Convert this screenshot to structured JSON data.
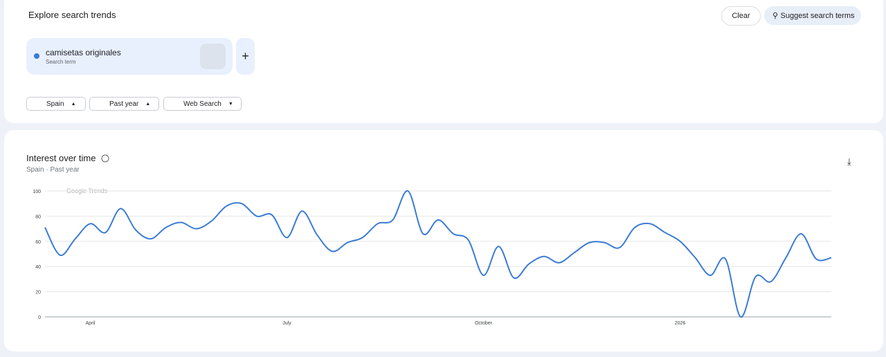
{
  "header": {
    "title": "Explore search trends",
    "clear": "Clear",
    "suggest": "Suggest search terms"
  },
  "term": {
    "name": "camisetas originales",
    "kind": "Search term"
  },
  "filters": [
    "Spain",
    "Past year",
    "Web Search"
  ],
  "chart_data": {
    "type": "line",
    "title": "Interest over time",
    "subtitle": "Spain · Past year",
    "watermark": "Google Trends",
    "categories": [
      null,
      null,
      null,
      "April",
      null,
      null,
      null,
      null,
      null,
      null,
      null,
      null,
      null,
      null,
      null,
      null,
      "July",
      null,
      null,
      null,
      null,
      null,
      null,
      null,
      null,
      null,
      null,
      null,
      null,
      "October",
      null,
      null,
      null,
      null,
      null,
      null,
      null,
      null,
      null,
      null,
      null,
      null,
      "2026",
      null,
      null,
      null,
      null,
      null,
      null,
      null,
      null,
      null,
      null
    ],
    "series": [
      {
        "color": "#3a7bd5",
        "values": [
          71,
          49,
          62,
          74,
          67,
          86,
          69,
          62,
          71,
          75,
          70,
          76,
          88,
          90,
          80,
          81,
          63,
          84,
          65,
          52,
          59,
          63,
          74,
          77,
          100,
          66,
          77,
          66,
          61,
          33,
          56,
          31,
          42,
          48,
          43,
          51,
          59,
          59,
          55,
          71,
          74,
          67,
          60,
          47,
          33,
          46,
          0,
          32,
          28,
          47,
          66,
          46,
          47
        ]
      }
    ],
    "ylim": [
      0,
      100
    ],
    "yticks": [
      0,
      20,
      40,
      60,
      80,
      100
    ],
    "grid": true
  }
}
